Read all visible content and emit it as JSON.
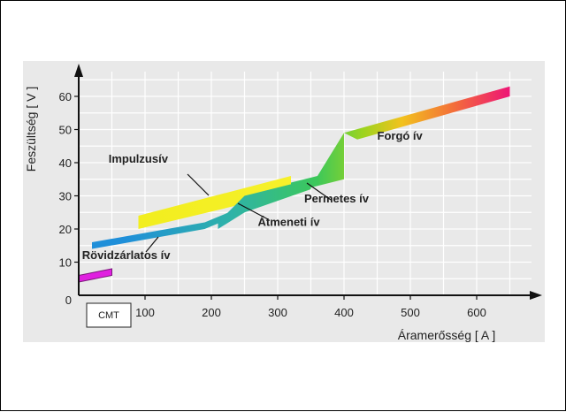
{
  "chart_data": {
    "type": "area",
    "xlabel": "Áramerősség  [ A ]",
    "ylabel": "Feszültség  [ V ]",
    "xlim": [
      0,
      650
    ],
    "ylim": [
      0,
      65
    ],
    "x_ticks": [
      100,
      200,
      300,
      400,
      500,
      600
    ],
    "y_ticks": [
      0,
      10,
      20,
      30,
      40,
      50,
      60
    ],
    "grid": true,
    "series": [
      {
        "name": "CMT",
        "color": "#e020e0",
        "upper": [
          [
            0,
            6
          ],
          [
            50,
            8
          ]
        ],
        "lower": [
          [
            0,
            4
          ],
          [
            50,
            6
          ]
        ]
      },
      {
        "name": "Rövidzárlatos ív",
        "color": "#2aa0d8",
        "upper": [
          [
            20,
            16
          ],
          [
            190,
            22
          ],
          [
            250,
            27
          ]
        ],
        "lower": [
          [
            20,
            14
          ],
          [
            190,
            20
          ],
          [
            250,
            25
          ]
        ]
      },
      {
        "name": "Impulzusív",
        "color": "#f0ee20",
        "upper": [
          [
            90,
            24
          ],
          [
            320,
            36
          ]
        ],
        "lower": [
          [
            90,
            20
          ],
          [
            320,
            31
          ]
        ]
      },
      {
        "name": "Átmeneti ív",
        "color": "#3ab878",
        "upper": [
          [
            210,
            22
          ],
          [
            250,
            30
          ],
          [
            350,
            35
          ]
        ],
        "lower": [
          [
            210,
            20
          ],
          [
            250,
            25
          ],
          [
            350,
            32
          ]
        ]
      },
      {
        "name": "Permetes ív",
        "color": "#40c040",
        "upper": [
          [
            320,
            34
          ],
          [
            360,
            36
          ],
          [
            400,
            49
          ]
        ],
        "lower": [
          [
            320,
            31
          ],
          [
            360,
            33
          ],
          [
            400,
            35
          ]
        ]
      },
      {
        "name": "Forgó ív",
        "color": "#f03060",
        "upper": [
          [
            400,
            49
          ],
          [
            650,
            63
          ]
        ],
        "lower": [
          [
            420,
            47
          ],
          [
            650,
            60
          ]
        ]
      }
    ],
    "annotations": [
      {
        "text": "Impulzusív",
        "x": 45,
        "y": 40
      },
      {
        "text": "Rövidzárlatos ív",
        "x": 5,
        "y": 11
      },
      {
        "text": "Átmeneti ív",
        "x": 270,
        "y": 21
      },
      {
        "text": "Permetes ív",
        "x": 340,
        "y": 28
      },
      {
        "text": "Forgó ív",
        "x": 450,
        "y": 47
      },
      {
        "text": "CMT",
        "x": -5,
        "y": -3
      }
    ]
  }
}
